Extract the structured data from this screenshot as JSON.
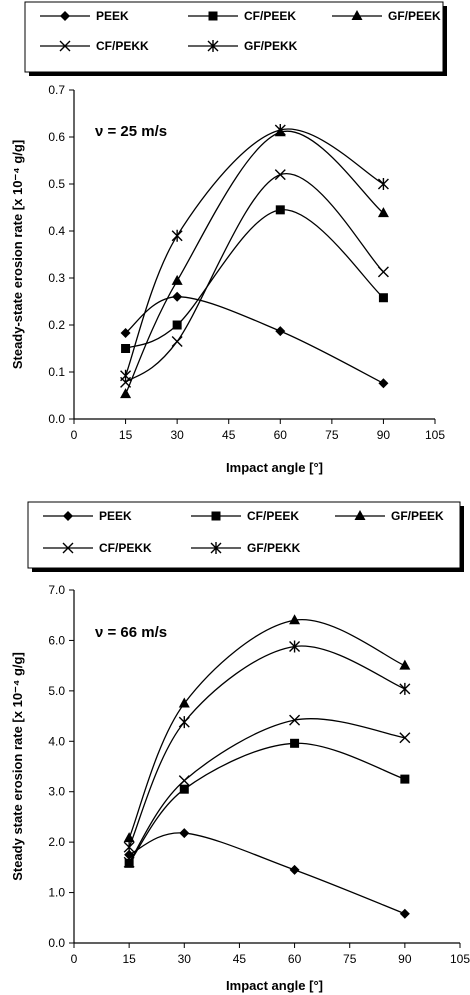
{
  "chart_data": [
    {
      "type": "line",
      "annotation": "ν = 25 m/s",
      "xlabel": "Impact angle [°]",
      "ylabel": "Steady-state erosion rate [x 10⁻⁴ g/g]",
      "xlim": [
        0,
        105
      ],
      "ylim": [
        0,
        0.7
      ],
      "xticks": [
        0,
        15,
        30,
        45,
        60,
        75,
        90,
        105
      ],
      "yticks": [
        0.0,
        0.1,
        0.2,
        0.3,
        0.4,
        0.5,
        0.6,
        0.7
      ],
      "ytick_labels": [
        "0.0",
        "0.1",
        "0.2",
        "0.3",
        "0.4",
        "0.5",
        "0.6",
        "0.7"
      ],
      "grid": false,
      "legend_position": "top",
      "x": [
        15,
        30,
        60,
        90
      ],
      "series": [
        {
          "name": "PEEK",
          "marker": "diamond",
          "values": [
            0.183,
            0.26,
            0.187,
            0.076
          ]
        },
        {
          "name": "CF/PEEK",
          "marker": "square",
          "values": [
            0.15,
            0.2,
            0.445,
            0.258
          ]
        },
        {
          "name": "GF/PEEK",
          "marker": "triangle",
          "values": [
            0.053,
            0.294,
            0.61,
            0.438
          ]
        },
        {
          "name": "CF/PEKK",
          "marker": "x",
          "values": [
            0.078,
            0.165,
            0.52,
            0.313
          ]
        },
        {
          "name": "GF/PEKK",
          "marker": "star",
          "values": [
            0.092,
            0.39,
            0.615,
            0.5
          ]
        }
      ]
    },
    {
      "type": "line",
      "annotation": "ν = 66 m/s",
      "xlabel": "Impact angle [°]",
      "ylabel": "Steady state erosion rate [x 10⁻⁴ g/g]",
      "xlim": [
        0,
        105
      ],
      "ylim": [
        0,
        7
      ],
      "xticks": [
        0,
        15,
        30,
        45,
        60,
        75,
        90,
        105
      ],
      "yticks": [
        0,
        1,
        2,
        3,
        4,
        5,
        6,
        7
      ],
      "ytick_labels": [
        "0.0",
        "1.0",
        "2.0",
        "3.0",
        "4.0",
        "5.0",
        "6.0",
        "7.0"
      ],
      "grid": false,
      "legend_position": "top",
      "x": [
        15,
        30,
        60,
        90
      ],
      "series": [
        {
          "name": "PEEK",
          "marker": "diamond",
          "values": [
            1.75,
            2.18,
            1.45,
            0.58
          ]
        },
        {
          "name": "CF/PEEK",
          "marker": "square",
          "values": [
            1.58,
            3.05,
            3.96,
            3.25
          ]
        },
        {
          "name": "GF/PEEK",
          "marker": "triangle",
          "values": [
            2.08,
            4.75,
            6.4,
            5.5
          ]
        },
        {
          "name": "CF/PEKK",
          "marker": "x",
          "values": [
            1.6,
            3.22,
            4.42,
            4.07
          ]
        },
        {
          "name": "GF/PEKK",
          "marker": "star",
          "values": [
            1.9,
            4.38,
            5.88,
            5.04
          ]
        }
      ]
    }
  ]
}
